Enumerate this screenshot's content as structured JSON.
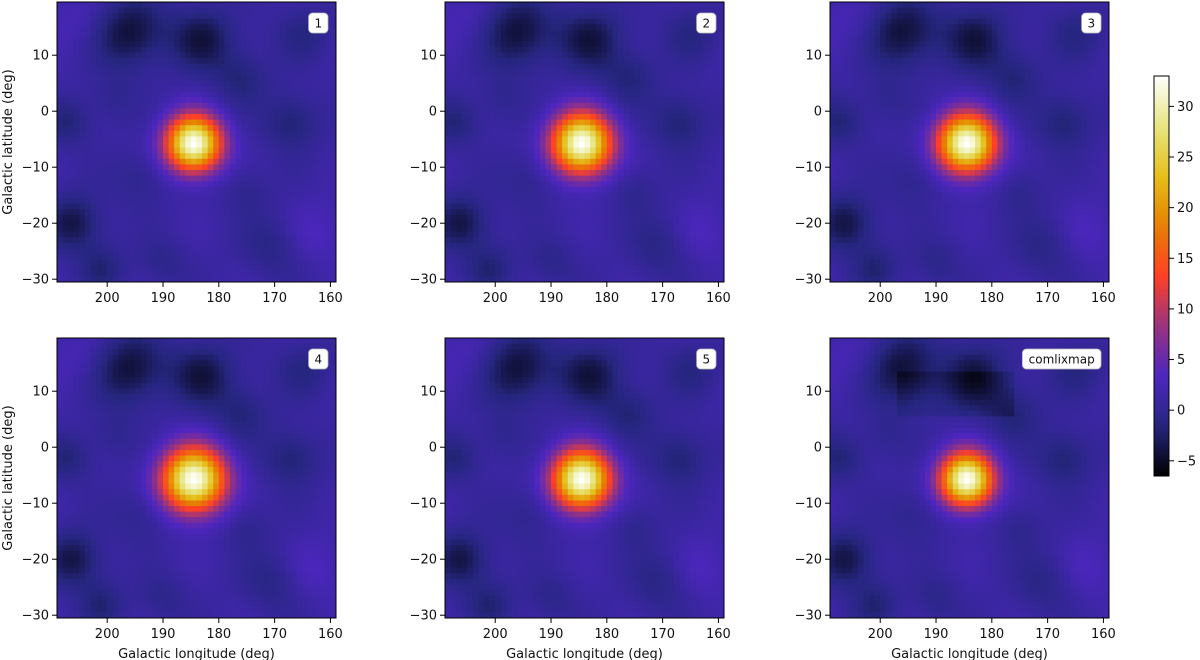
{
  "chart_data": {
    "type": "heatmap",
    "colormap": "CMRmap",
    "colorbar": {
      "vmin": -6.5,
      "vmax": 33,
      "ticks": [
        -5,
        0,
        5,
        10,
        15,
        20,
        25,
        30
      ],
      "tick_labels": [
        "−5",
        "0",
        "5",
        "10",
        "15",
        "20",
        "25",
        "30"
      ]
    },
    "x_axis": {
      "label": "Galactic longitude (deg)",
      "range": [
        209,
        159
      ],
      "ticks": [
        200,
        190,
        180,
        170,
        160
      ],
      "tick_labels": [
        "200",
        "190",
        "180",
        "170",
        "160"
      ]
    },
    "y_axis": {
      "label": "Galactic latitude (deg)",
      "range": [
        -30.5,
        19.5
      ],
      "ticks": [
        10,
        0,
        -10,
        -20,
        -30
      ],
      "tick_labels": [
        "10",
        "0",
        "−10",
        "−20",
        "−30"
      ]
    },
    "source": {
      "l": 184.5,
      "b": -5.8
    },
    "panels": [
      {
        "label": "1",
        "peak": 33,
        "sigma": 3.4
      },
      {
        "label": "2",
        "peak": 33,
        "sigma": 3.7
      },
      {
        "label": "3",
        "peak": 33,
        "sigma": 3.6
      },
      {
        "label": "4",
        "peak": 33,
        "sigma": 3.9
      },
      {
        "label": "5",
        "peak": 33,
        "sigma": 3.6
      },
      {
        "label": "comlixmap",
        "peak": 33,
        "sigma": 3.3
      }
    ],
    "grid": false
  }
}
